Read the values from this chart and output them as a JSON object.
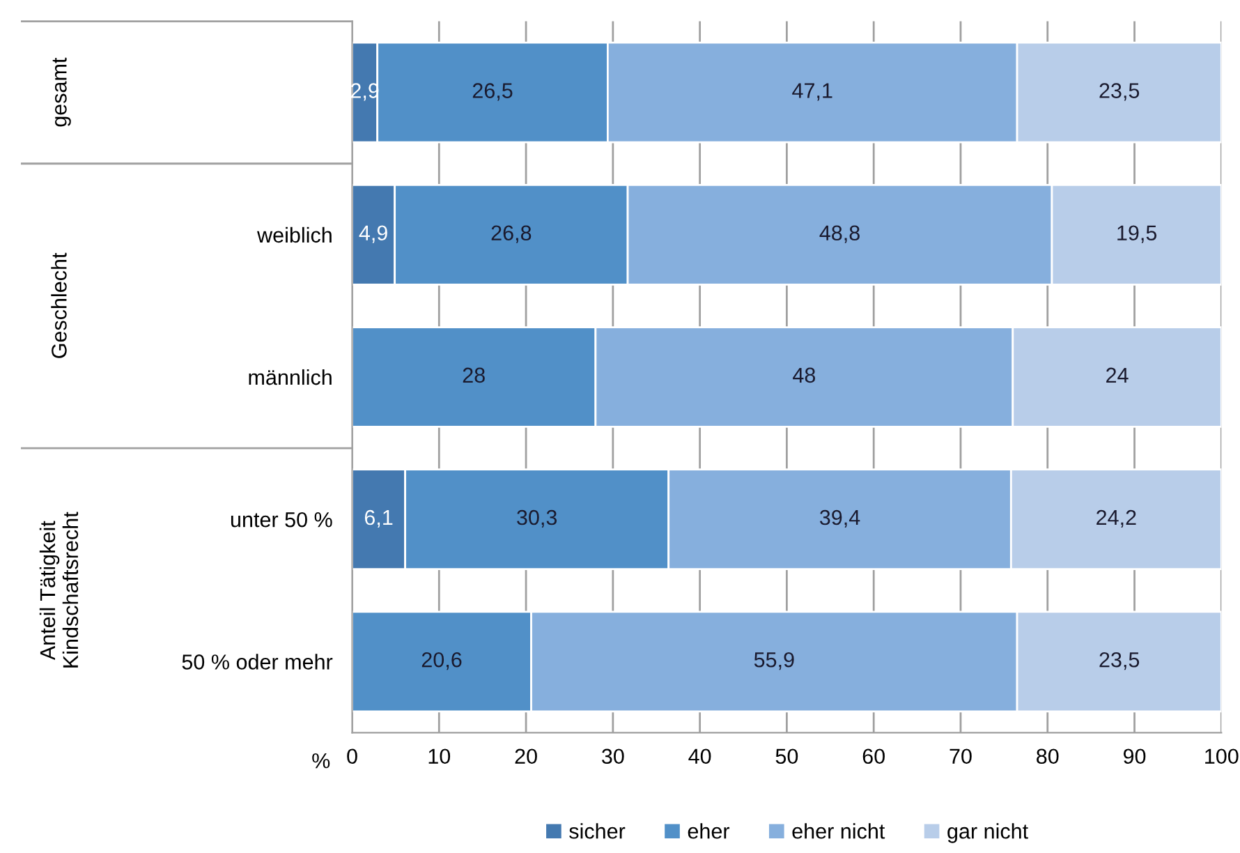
{
  "chart_data": {
    "type": "bar",
    "orientation": "horizontal",
    "stacked": true,
    "xlabel": "%",
    "categories": [
      null,
      "weiblich",
      "männlich",
      "unter 50 %",
      "50 % oder mehr"
    ],
    "annotations": [
      "gesamt",
      "Geschlecht",
      "Anteil Tätigkeit\nKindschaftsrecht"
    ],
    "series": [
      {
        "name": "sicher",
        "color": "#4479b0",
        "values": [
          2.9,
          4.9,
          0,
          6.1,
          0
        ],
        "value_labels": [
          "2,9",
          "4,9",
          null,
          "6,1",
          null
        ]
      },
      {
        "name": "eher",
        "color": "#5190c8",
        "values": [
          26.5,
          26.8,
          28,
          30.3,
          20.6
        ],
        "value_labels": [
          "26,5",
          "26,8",
          "28",
          "30,3",
          "20,6"
        ]
      },
      {
        "name": "eher nicht",
        "color": "#86afdd",
        "values": [
          47.1,
          48.8,
          48,
          39.4,
          55.9
        ],
        "value_labels": [
          "47,1",
          "48,8",
          "48",
          "39,4",
          "55,9"
        ]
      },
      {
        "name": "gar nicht",
        "color": "#b8cde9",
        "values": [
          23.5,
          19.5,
          24,
          24.2,
          23.5
        ],
        "value_labels": [
          "23,5",
          "19,5",
          "24",
          "24,2",
          "23,5"
        ]
      }
    ],
    "xlim": [
      0,
      100
    ],
    "xticks": [
      0,
      10,
      20,
      30,
      40,
      50,
      60,
      70,
      80,
      90,
      100
    ],
    "grid": "x",
    "legend": "bottom"
  }
}
